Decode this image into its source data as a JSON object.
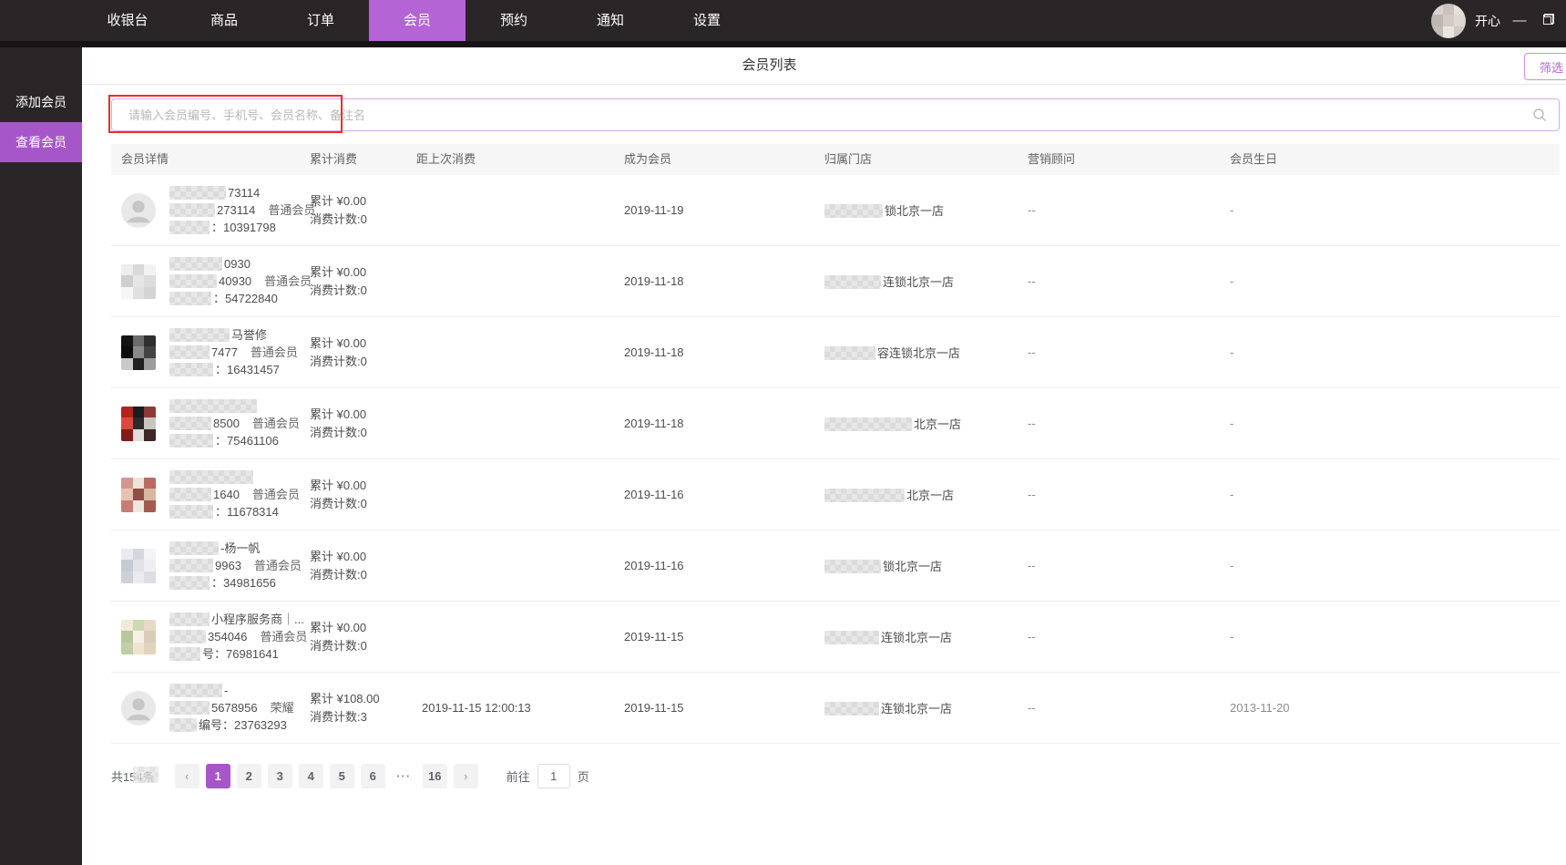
{
  "colors": {
    "accent": "#b564d6",
    "accent_dark": "#a756ca",
    "annotation": "#e6302b",
    "nav_bg": "#2a2627"
  },
  "nav": {
    "items": [
      {
        "label": "收银台"
      },
      {
        "label": "商品"
      },
      {
        "label": "订单"
      },
      {
        "label": "会员"
      },
      {
        "label": "预约"
      },
      {
        "label": "通知"
      },
      {
        "label": "设置"
      }
    ],
    "active_index": 3,
    "user": "开心",
    "minimize_glyph": "—"
  },
  "sidebar": {
    "items": [
      {
        "label": "添加会员",
        "active": false
      },
      {
        "label": "查看会员",
        "active": true
      }
    ]
  },
  "header": {
    "title": "会员列表",
    "filter_label": "筛选"
  },
  "search": {
    "placeholder": "请输入会员编号、手机号、会员名称、备注名",
    "value": "",
    "icon": "search-icon"
  },
  "table": {
    "columns": [
      {
        "label": "会员详情"
      },
      {
        "label": "累计消费"
      },
      {
        "label": "距上次消费"
      },
      {
        "label": "成为会员"
      },
      {
        "label": "归属门店"
      },
      {
        "label": "营销顾问"
      },
      {
        "label": "会员生日"
      }
    ]
  },
  "rows": [
    {
      "avatar": {
        "type": "default"
      },
      "line1": {
        "blur_w": 62,
        "text": "73114"
      },
      "line2": {
        "blur_w": 50,
        "text": "273114",
        "level": "普通会员"
      },
      "line3": {
        "blur_w": 44,
        "text": "：10391798"
      },
      "total": "累计 ¥0.00",
      "count": "消费计数:0",
      "last_spend": "",
      "joined": "2019-11-19",
      "store": {
        "blur_w": 64,
        "text": "锁北京一店"
      },
      "advisor": "--",
      "birthday": "-"
    },
    {
      "avatar": {
        "type": "mosaic",
        "colors": [
          "#ededed",
          "#d9d9d9",
          "#f2f2f2",
          "#cfcfcf",
          "#e6e6e6",
          "#dcdcdc",
          "#f5f5f5",
          "#e0e0e0",
          "#d4d4d4"
        ]
      },
      "line1": {
        "blur_w": 58,
        "text": "0930"
      },
      "line2": {
        "blur_w": 52,
        "text": "40930",
        "level": "普通会员"
      },
      "line3": {
        "blur_w": 46,
        "text": "：54722840"
      },
      "total": "累计 ¥0.00",
      "count": "消费计数:0",
      "last_spend": "",
      "joined": "2019-11-18",
      "store": {
        "blur_w": 62,
        "text": "连锁北京一店"
      },
      "advisor": "--",
      "birthday": "-"
    },
    {
      "avatar": {
        "type": "mosaic",
        "colors": [
          "#141414",
          "#6b6b6b",
          "#2e2e2e",
          "#0d0d0d",
          "#8a8a8a",
          "#444444",
          "#c9c9c9",
          "#1f1f1f",
          "#9b9b9b"
        ]
      },
      "line1": {
        "blur_w": 66,
        "text": "马誉修"
      },
      "line2": {
        "blur_w": 44,
        "text": "7477",
        "level": "普通会员"
      },
      "line3": {
        "blur_w": 48,
        "text": "：16431457"
      },
      "total": "累计 ¥0.00",
      "count": "消费计数:0",
      "last_spend": "",
      "joined": "2019-11-18",
      "store": {
        "blur_w": 56,
        "text": "容连锁北京一店"
      },
      "advisor": "--",
      "birthday": "-"
    },
    {
      "avatar": {
        "type": "mosaic",
        "colors": [
          "#b3241f",
          "#1c1c1c",
          "#8c3a38",
          "#d94a40",
          "#2b2b2b",
          "#c9c4c0",
          "#801d1a",
          "#e0dddb",
          "#3d2626"
        ]
      },
      "line1": {
        "blur_w": 96,
        "text": ""
      },
      "line2": {
        "blur_w": 46,
        "text": "8500",
        "level": "普通会员"
      },
      "line3": {
        "blur_w": 48,
        "text": "：75461106"
      },
      "total": "累计 ¥0.00",
      "count": "消费计数:0",
      "last_spend": "",
      "joined": "2019-11-18",
      "store": {
        "blur_w": 96,
        "text": "北京一店"
      },
      "advisor": "--",
      "birthday": "-"
    },
    {
      "avatar": {
        "type": "mosaic",
        "colors": [
          "#d2958f",
          "#efe3d8",
          "#b96a62",
          "#e7c2b4",
          "#8f4f46",
          "#d8b79f",
          "#c47f74",
          "#f0e8dd",
          "#a55a50"
        ]
      },
      "line1": {
        "blur_w": 92,
        "text": ""
      },
      "line2": {
        "blur_w": 46,
        "text": "1640",
        "level": "普通会员"
      },
      "line3": {
        "blur_w": 48,
        "text": "：11678314"
      },
      "total": "累计 ¥0.00",
      "count": "消费计数:0",
      "last_spend": "",
      "joined": "2019-11-16",
      "store": {
        "blur_w": 88,
        "text": "北京一店"
      },
      "advisor": "--",
      "birthday": "-"
    },
    {
      "avatar": {
        "type": "mosaic",
        "colors": [
          "#e9e9ef",
          "#d6d6de",
          "#f4f4f7",
          "#c9c9d2",
          "#e2e2e8",
          "#efeff3",
          "#d0d0d8",
          "#eaeaf0",
          "#dddde4"
        ]
      },
      "line1": {
        "blur_w": 54,
        "text": "-杨一帆"
      },
      "line2": {
        "blur_w": 48,
        "text": "9963",
        "level": "普通会员"
      },
      "line3": {
        "blur_w": 44,
        "text": "：34981656"
      },
      "total": "累计 ¥0.00",
      "count": "消费计数:0",
      "last_spend": "",
      "joined": "2019-11-16",
      "store": {
        "blur_w": 62,
        "text": "锁北京一店"
      },
      "advisor": "--",
      "birthday": "-"
    },
    {
      "avatar": {
        "type": "mosaic",
        "colors": [
          "#f2e9da",
          "#cdd9b4",
          "#e8d9c6",
          "#b7c79a",
          "#f6f1e6",
          "#d9cdb8",
          "#c2cfa6",
          "#efe4d2",
          "#e0d4bf"
        ]
      },
      "line1": {
        "blur_w": 44,
        "text": "小程序服务商｜..."
      },
      "line2": {
        "blur_w": 40,
        "text": "354046",
        "level": "普通会员"
      },
      "line3": {
        "blur_w": 34,
        "text": "号：76981641"
      },
      "total": "累计 ¥0.00",
      "count": "消费计数:0",
      "last_spend": "",
      "joined": "2019-11-15",
      "store": {
        "blur_w": 60,
        "text": "连锁北京一店"
      },
      "advisor": "--",
      "birthday": "-"
    },
    {
      "avatar": {
        "type": "default"
      },
      "line1": {
        "blur_w": 58,
        "text": "-"
      },
      "line2": {
        "blur_w": 44,
        "text": "5678956",
        "level": "荣耀"
      },
      "line3": {
        "blur_w": 30,
        "text": "编号：23763293"
      },
      "total": "累计 ¥108.00",
      "count": "消费计数:3",
      "last_spend": "2019-11-15 12:00:13",
      "joined": "2019-11-15",
      "store": {
        "blur_w": 60,
        "text": "连锁北京一店"
      },
      "advisor": "--",
      "birthday": "2013-11-20"
    }
  ],
  "pagination": {
    "total_label": "共154条",
    "prev_glyph": "‹",
    "next_glyph": "›",
    "pages": [
      "1",
      "2",
      "3",
      "4",
      "5",
      "6"
    ],
    "active_page": "1",
    "ellipsis": "···",
    "last_page": "16",
    "goto_label": "前往",
    "page_unit": "页",
    "input_value": "1"
  }
}
